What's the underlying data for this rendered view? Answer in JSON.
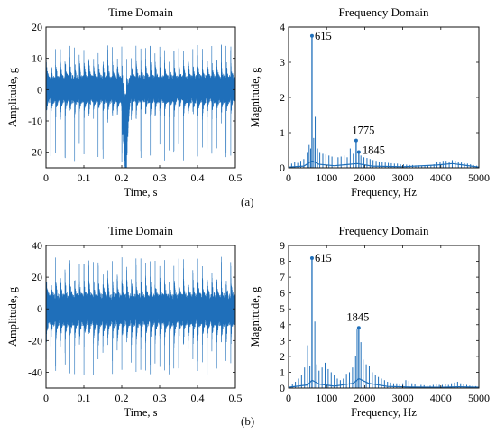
{
  "figure": {
    "label_a": "(a)",
    "label_b": "(b)"
  },
  "chart_data": [
    {
      "id": "a_time",
      "type": "line",
      "title": "Time Domain",
      "xlabel": "Time, s",
      "ylabel": "Amplitude, g",
      "xlim": [
        0,
        0.5
      ],
      "ylim": [
        -25,
        20
      ],
      "xticks": [
        0,
        0.1,
        0.2,
        0.3,
        0.4,
        0.5
      ],
      "yticks": [
        -20,
        -10,
        0,
        10,
        20
      ],
      "color": "#1f6fba",
      "signal": {
        "duration_s": 0.5,
        "impact_period_s": 0.0125,
        "envelope_upper_g": 13,
        "envelope_lower_g": -12,
        "peak_min_g": -23,
        "peak_min_t_s": 0.21,
        "peak_max_g": 15
      }
    },
    {
      "id": "a_freq",
      "type": "line",
      "title": "Frequency Domain",
      "xlabel": "Frequency, Hz",
      "ylabel": "Magnitude, g",
      "xlim": [
        0,
        5000
      ],
      "ylim": [
        0,
        4
      ],
      "xticks": [
        0,
        1000,
        2000,
        3000,
        4000,
        5000
      ],
      "yticks": [
        0,
        1,
        2,
        3,
        4
      ],
      "color": "#1f6fba",
      "peaks": [
        {
          "f": 615,
          "mag": 3.75,
          "label": "615"
        },
        {
          "f": 1775,
          "mag": 0.78,
          "label": "1775"
        },
        {
          "f": 1845,
          "mag": 0.45,
          "label": "1845"
        }
      ],
      "spectrum_lines": [
        [
          80,
          0.12
        ],
        [
          160,
          0.16
        ],
        [
          240,
          0.14
        ],
        [
          320,
          0.2
        ],
        [
          400,
          0.25
        ],
        [
          490,
          0.45
        ],
        [
          540,
          0.65
        ],
        [
          580,
          0.55
        ],
        [
          660,
          0.85
        ],
        [
          700,
          1.45
        ],
        [
          760,
          0.55
        ],
        [
          820,
          0.45
        ],
        [
          900,
          0.4
        ],
        [
          980,
          0.38
        ],
        [
          1060,
          0.35
        ],
        [
          1140,
          0.32
        ],
        [
          1220,
          0.3
        ],
        [
          1300,
          0.3
        ],
        [
          1380,
          0.32
        ],
        [
          1460,
          0.35
        ],
        [
          1540,
          0.3
        ],
        [
          1620,
          0.55
        ],
        [
          1700,
          0.4
        ],
        [
          1900,
          0.35
        ],
        [
          1980,
          0.3
        ],
        [
          2060,
          0.28
        ],
        [
          2140,
          0.25
        ],
        [
          2220,
          0.22
        ],
        [
          2300,
          0.2
        ],
        [
          2380,
          0.18
        ],
        [
          2460,
          0.17
        ],
        [
          2540,
          0.15
        ],
        [
          2620,
          0.14
        ],
        [
          2700,
          0.13
        ],
        [
          2780,
          0.12
        ],
        [
          2860,
          0.12
        ],
        [
          2940,
          0.1
        ],
        [
          3020,
          0.1
        ],
        [
          3100,
          0.09
        ],
        [
          3180,
          0.08
        ],
        [
          3260,
          0.08
        ],
        [
          3340,
          0.07
        ],
        [
          3420,
          0.07
        ],
        [
          3500,
          0.06
        ],
        [
          3580,
          0.06
        ],
        [
          3660,
          0.06
        ],
        [
          3740,
          0.07
        ],
        [
          3820,
          0.1
        ],
        [
          3900,
          0.16
        ],
        [
          3980,
          0.18
        ],
        [
          4060,
          0.2
        ],
        [
          4140,
          0.2
        ],
        [
          4220,
          0.18
        ],
        [
          4300,
          0.22
        ],
        [
          4380,
          0.2
        ],
        [
          4460,
          0.17
        ],
        [
          4540,
          0.15
        ],
        [
          4620,
          0.13
        ],
        [
          4700,
          0.12
        ],
        [
          4780,
          0.1
        ],
        [
          4860,
          0.08
        ],
        [
          4940,
          0.06
        ]
      ],
      "baseline": [
        [
          0,
          0.02
        ],
        [
          400,
          0.05
        ],
        [
          615,
          0.2
        ],
        [
          800,
          0.1
        ],
        [
          1200,
          0.06
        ],
        [
          1800,
          0.12
        ],
        [
          2200,
          0.05
        ],
        [
          3000,
          0.03
        ],
        [
          3900,
          0.08
        ],
        [
          4300,
          0.12
        ],
        [
          4800,
          0.05
        ],
        [
          5000,
          0.02
        ]
      ]
    },
    {
      "id": "b_time",
      "type": "line",
      "title": "Time Domain",
      "xlabel": "Time, s",
      "ylabel": "Amplitude, g",
      "xlim": [
        0,
        0.5
      ],
      "ylim": [
        -50,
        40
      ],
      "xticks": [
        0,
        0.1,
        0.2,
        0.3,
        0.4,
        0.5
      ],
      "yticks": [
        -40,
        -20,
        0,
        20,
        40
      ],
      "color": "#1f6fba",
      "signal": {
        "duration_s": 0.5,
        "impact_period_s": 0.0125,
        "envelope_upper_g": 27,
        "envelope_lower_g": -30,
        "peak_min_g": -42,
        "peak_max_g": 33
      }
    },
    {
      "id": "b_freq",
      "type": "line",
      "title": "Frequency Domain",
      "xlabel": "Frequency, Hz",
      "ylabel": "Magnitude, g",
      "xlim": [
        0,
        5000
      ],
      "ylim": [
        0,
        9
      ],
      "xticks": [
        0,
        1000,
        2000,
        3000,
        4000,
        5000
      ],
      "yticks": [
        0,
        1,
        2,
        3,
        4,
        5,
        6,
        7,
        8,
        9
      ],
      "color": "#1f6fba",
      "peaks": [
        {
          "f": 615,
          "mag": 8.2,
          "label": "615"
        },
        {
          "f": 1845,
          "mag": 3.8,
          "label": "1845"
        }
      ],
      "spectrum_lines": [
        [
          100,
          0.25
        ],
        [
          180,
          0.4
        ],
        [
          260,
          0.6
        ],
        [
          340,
          0.8
        ],
        [
          420,
          1.3
        ],
        [
          500,
          2.7
        ],
        [
          560,
          1.4
        ],
        [
          690,
          4.2
        ],
        [
          740,
          1.5
        ],
        [
          800,
          1.1
        ],
        [
          880,
          1.3
        ],
        [
          960,
          1.6
        ],
        [
          1040,
          1.2
        ],
        [
          1120,
          1.0
        ],
        [
          1200,
          0.8
        ],
        [
          1280,
          0.6
        ],
        [
          1360,
          0.5
        ],
        [
          1440,
          0.6
        ],
        [
          1520,
          0.9
        ],
        [
          1600,
          1.0
        ],
        [
          1680,
          1.3
        ],
        [
          1760,
          2.0
        ],
        [
          1800,
          3.7
        ],
        [
          1900,
          2.9
        ],
        [
          1960,
          1.8
        ],
        [
          2040,
          1.5
        ],
        [
          2120,
          1.4
        ],
        [
          2200,
          1.0
        ],
        [
          2280,
          0.8
        ],
        [
          2360,
          0.7
        ],
        [
          2440,
          0.6
        ],
        [
          2520,
          0.5
        ],
        [
          2600,
          0.4
        ],
        [
          2680,
          0.35
        ],
        [
          2760,
          0.3
        ],
        [
          2840,
          0.3
        ],
        [
          2920,
          0.25
        ],
        [
          3000,
          0.3
        ],
        [
          3080,
          0.5
        ],
        [
          3160,
          0.45
        ],
        [
          3240,
          0.3
        ],
        [
          3320,
          0.25
        ],
        [
          3400,
          0.2
        ],
        [
          3480,
          0.2
        ],
        [
          3560,
          0.18
        ],
        [
          3640,
          0.15
        ],
        [
          3720,
          0.15
        ],
        [
          3800,
          0.2
        ],
        [
          3880,
          0.25
        ],
        [
          3960,
          0.2
        ],
        [
          4040,
          0.2
        ],
        [
          4120,
          0.25
        ],
        [
          4200,
          0.2
        ],
        [
          4280,
          0.3
        ],
        [
          4360,
          0.35
        ],
        [
          4440,
          0.4
        ],
        [
          4520,
          0.3
        ],
        [
          4600,
          0.25
        ],
        [
          4680,
          0.2
        ],
        [
          4760,
          0.15
        ],
        [
          4840,
          0.15
        ],
        [
          4920,
          0.12
        ]
      ],
      "baseline": [
        [
          0,
          0.05
        ],
        [
          500,
          0.2
        ],
        [
          615,
          0.5
        ],
        [
          800,
          0.25
        ],
        [
          1200,
          0.12
        ],
        [
          1700,
          0.3
        ],
        [
          1845,
          0.6
        ],
        [
          2100,
          0.3
        ],
        [
          2600,
          0.1
        ],
        [
          3200,
          0.06
        ],
        [
          4000,
          0.05
        ],
        [
          4500,
          0.08
        ],
        [
          5000,
          0.05
        ]
      ]
    }
  ]
}
